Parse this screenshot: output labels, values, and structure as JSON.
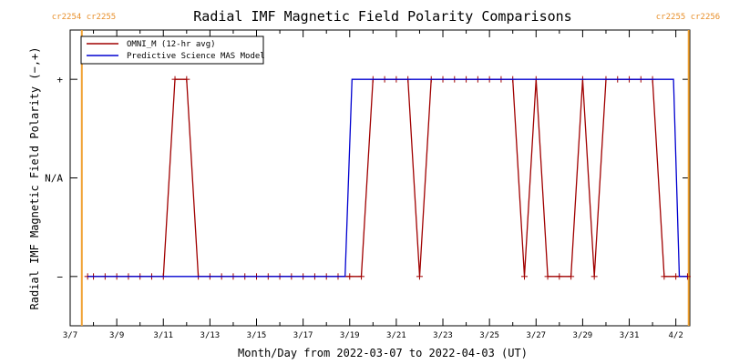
{
  "chart_data": {
    "type": "line",
    "title": "Radial IMF Magnetic Field Polarity Comparisons",
    "xlabel": "Month/Day from 2022-03-07 to 2022-04-03 (UT)",
    "ylabel": "Radial IMF Magnetic Field Polarity (−,+)",
    "x_unit": "days",
    "xlim": [
      0,
      26.6
    ],
    "ylim": [
      -1.5,
      1.5
    ],
    "x_ticks": [
      {
        "x": 0,
        "label": "3/7"
      },
      {
        "x": 2,
        "label": "3/9"
      },
      {
        "x": 4,
        "label": "3/11"
      },
      {
        "x": 6,
        "label": "3/13"
      },
      {
        "x": 8,
        "label": "3/15"
      },
      {
        "x": 10,
        "label": "3/17"
      },
      {
        "x": 12,
        "label": "3/19"
      },
      {
        "x": 14,
        "label": "3/21"
      },
      {
        "x": 16,
        "label": "3/23"
      },
      {
        "x": 18,
        "label": "3/25"
      },
      {
        "x": 20,
        "label": "3/27"
      },
      {
        "x": 22,
        "label": "3/29"
      },
      {
        "x": 24,
        "label": "3/31"
      },
      {
        "x": 26,
        "label": "4/2"
      }
    ],
    "y_ticks": [
      {
        "y": 1,
        "label": "+"
      },
      {
        "y": 0,
        "label": "N/A"
      },
      {
        "y": -1,
        "label": "−"
      }
    ],
    "carrington_markers": [
      {
        "x": 0.5,
        "label": "cr2254 cr2255"
      },
      {
        "x": 26.55,
        "label": "cr2255 cr2256"
      }
    ],
    "legend_position": "top-left",
    "series": [
      {
        "name": "OMNI_M (12-hr avg)",
        "color": "#a00000",
        "marker": "+",
        "x": [
          0.75,
          1.0,
          1.5,
          2.0,
          2.5,
          3.0,
          3.5,
          4.0,
          4.5,
          5.0,
          5.5,
          6.0,
          6.5,
          7.0,
          7.5,
          8.0,
          8.5,
          9.0,
          9.5,
          10.0,
          10.5,
          11.0,
          11.5,
          12.0,
          12.5,
          13.0,
          13.5,
          14.0,
          14.5,
          15.0,
          15.5,
          16.0,
          16.5,
          17.0,
          17.5,
          18.0,
          18.5,
          19.0,
          19.5,
          20.0,
          20.5,
          21.0,
          21.5,
          22.0,
          22.5,
          23.0,
          23.5,
          24.0,
          24.5,
          25.0,
          25.5,
          26.0,
          26.5
        ],
        "y": [
          -1,
          -1,
          -1,
          -1,
          -1,
          -1,
          -1,
          -1,
          1,
          1,
          -1,
          -1,
          -1,
          -1,
          -1,
          -1,
          -1,
          -1,
          -1,
          -1,
          -1,
          -1,
          -1,
          -1,
          -1,
          1,
          1,
          1,
          1,
          -1,
          1,
          1,
          1,
          1,
          1,
          1,
          1,
          1,
          -1,
          1,
          -1,
          -1,
          -1,
          1,
          -1,
          1,
          1,
          1,
          1,
          1,
          -1,
          -1,
          -1
        ]
      },
      {
        "name": "Predictive Science MAS Model",
        "color": "#0000d0",
        "x": [
          0.75,
          11.8,
          12.1,
          25.9,
          26.15,
          26.5
        ],
        "y": [
          -1,
          -1,
          1,
          1,
          -1,
          -1
        ]
      }
    ]
  }
}
